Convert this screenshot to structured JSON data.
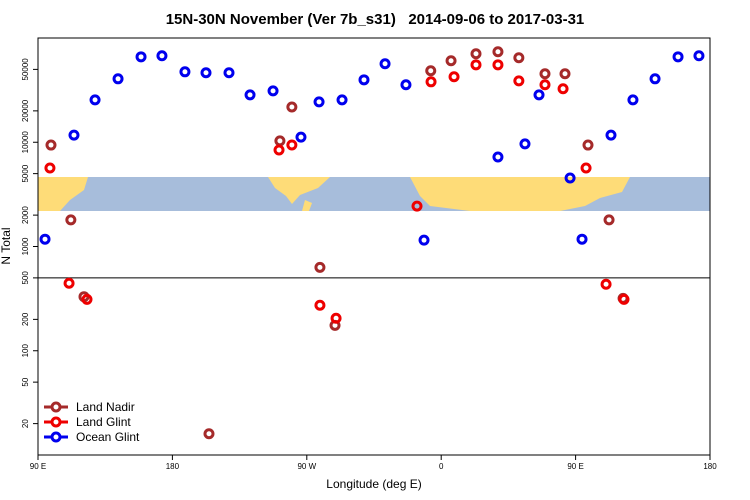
{
  "chart_data": {
    "type": "scatter",
    "title": "15N-30N November (Ver 7b_s31)   2014-09-06 to 2017-03-31",
    "x_label": "Longitude (deg E)",
    "y_label": "N Total",
    "xlim": [
      90,
      540
    ],
    "ylim": [
      10,
      100000
    ],
    "log_y": true,
    "xticks": [
      {
        "value": 90,
        "label": "90 E"
      },
      180,
      {
        "value": 270,
        "label": "90 W"
      },
      {
        "value": 360,
        "label": "0"
      },
      {
        "value": 450,
        "label": "90 E"
      },
      {
        "value": 540,
        "label": "180"
      }
    ],
    "yticks": [
      20,
      50,
      100,
      200,
      500,
      1000,
      2000,
      5000,
      10000,
      20000,
      50000
    ],
    "reference_line": 500,
    "legend": "bottomleft",
    "series": [
      {
        "name": "Land Nadir",
        "color": "#a52a2a",
        "x": [
          98.7,
          112,
          120.8,
          204.5,
          252,
          260,
          278.8,
          288.9,
          353,
          366.6,
          383.3,
          398,
          412,
          429.5,
          442.9,
          458.3,
          472.4,
          481.8
        ],
        "values": [
          9400,
          1800,
          330,
          16,
          10300,
          21800,
          630,
          175,
          48500,
          60500,
          70600,
          73800,
          64700,
          45400,
          45400,
          9400,
          1800,
          318
        ]
      },
      {
        "name": "Land Glint",
        "color": "#ee0000",
        "x": [
          98,
          110.8,
          122.8,
          251.4,
          260,
          278.8,
          289.6,
          343.8,
          353.2,
          368.6,
          383.3,
          398,
          412,
          429.5,
          441.6,
          457,
          470.4,
          482.4
        ],
        "values": [
          5660,
          444,
          311,
          8430,
          9420,
          273,
          205,
          2440,
          38000,
          42500,
          55300,
          55300,
          38800,
          35600,
          32600,
          5660,
          434,
          311
        ]
      },
      {
        "name": "Ocean Glint",
        "color": "#0000ee",
        "x": [
          94.7,
          114.1,
          128.2,
          143.6,
          159,
          173,
          188.4,
          202.5,
          217.9,
          232,
          247.4,
          266.1,
          278.2,
          293.6,
          308.3,
          322.4,
          336.4,
          348.5,
          398,
          416.1,
          425.5,
          446.3,
          454.3,
          473.7,
          488.4,
          503.2,
          518.6,
          532.6
        ],
        "values": [
          1175,
          11700,
          25500,
          40600,
          66000,
          67500,
          47400,
          46400,
          46400,
          28500,
          31100,
          11200,
          24400,
          25500,
          39700,
          56600,
          35600,
          1150,
          7220,
          9640,
          28500,
          4540,
          1175,
          11700,
          25500,
          40600,
          66000,
          67500
        ]
      }
    ]
  }
}
